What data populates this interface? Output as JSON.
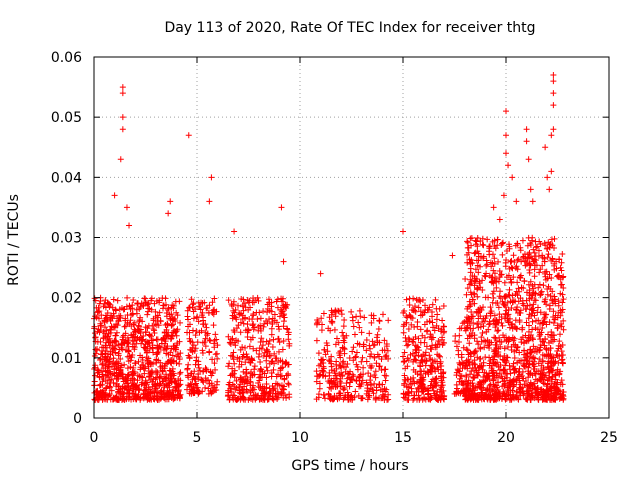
{
  "chart_data": {
    "type": "scatter",
    "title": "Day 113 of 2020, Rate Of TEC Index for receiver thtg",
    "xlabel": "GPS time / hours",
    "ylabel": "ROTI / TECUs",
    "xlim": [
      0,
      25
    ],
    "ylim": [
      0,
      0.06
    ],
    "grid": true,
    "marker": "+",
    "color": "#ff0000",
    "x_ticks": [
      0,
      5,
      10,
      15,
      20,
      25
    ],
    "x_tick_labels": [
      "0",
      "5",
      "10",
      "15",
      "20",
      "25"
    ],
    "y_ticks": [
      0,
      0.01,
      0.02,
      0.03,
      0.04,
      0.05,
      0.06
    ],
    "y_tick_labels": [
      "0",
      "0.01",
      "0.02",
      "0.03",
      "0.04",
      "0.05",
      "0.06"
    ],
    "series": [
      {
        "name": "ROTI",
        "clusters": [
          {
            "x_start": 0.0,
            "x_end": 4.2,
            "y_min": 0.003,
            "y_max": 0.02,
            "density": 900
          },
          {
            "x_start": 4.5,
            "x_end": 6.0,
            "y_min": 0.004,
            "y_max": 0.02,
            "density": 180
          },
          {
            "x_start": 6.5,
            "x_end": 9.5,
            "y_min": 0.003,
            "y_max": 0.02,
            "density": 420
          },
          {
            "x_start": 10.8,
            "x_end": 14.3,
            "y_min": 0.003,
            "y_max": 0.018,
            "density": 330
          },
          {
            "x_start": 15.0,
            "x_end": 17.0,
            "y_min": 0.003,
            "y_max": 0.02,
            "density": 320
          },
          {
            "x_start": 17.5,
            "x_end": 18.0,
            "y_min": 0.004,
            "y_max": 0.016,
            "density": 50
          },
          {
            "x_start": 18.0,
            "x_end": 22.8,
            "y_min": 0.003,
            "y_max": 0.03,
            "density": 1300
          }
        ],
        "highlights": [
          {
            "x": 1.4,
            "y": 0.055
          },
          {
            "x": 1.4,
            "y": 0.054
          },
          {
            "x": 1.4,
            "y": 0.05
          },
          {
            "x": 1.4,
            "y": 0.048
          },
          {
            "x": 1.3,
            "y": 0.043
          },
          {
            "x": 4.6,
            "y": 0.047
          },
          {
            "x": 5.7,
            "y": 0.04
          },
          {
            "x": 5.6,
            "y": 0.036
          },
          {
            "x": 9.1,
            "y": 0.035
          },
          {
            "x": 3.7,
            "y": 0.036
          },
          {
            "x": 3.6,
            "y": 0.034
          },
          {
            "x": 1.0,
            "y": 0.037
          },
          {
            "x": 1.6,
            "y": 0.035
          },
          {
            "x": 1.7,
            "y": 0.032
          },
          {
            "x": 6.8,
            "y": 0.031
          },
          {
            "x": 15.0,
            "y": 0.031
          },
          {
            "x": 9.2,
            "y": 0.026
          },
          {
            "x": 11.0,
            "y": 0.024
          },
          {
            "x": 17.4,
            "y": 0.027
          },
          {
            "x": 20.0,
            "y": 0.051
          },
          {
            "x": 20.0,
            "y": 0.047
          },
          {
            "x": 20.0,
            "y": 0.044
          },
          {
            "x": 20.1,
            "y": 0.042
          },
          {
            "x": 20.3,
            "y": 0.04
          },
          {
            "x": 20.5,
            "y": 0.036
          },
          {
            "x": 21.0,
            "y": 0.048
          },
          {
            "x": 21.0,
            "y": 0.046
          },
          {
            "x": 21.1,
            "y": 0.043
          },
          {
            "x": 21.2,
            "y": 0.038
          },
          {
            "x": 21.3,
            "y": 0.036
          },
          {
            "x": 21.9,
            "y": 0.045
          },
          {
            "x": 22.0,
            "y": 0.04
          },
          {
            "x": 22.1,
            "y": 0.038
          },
          {
            "x": 22.3,
            "y": 0.057
          },
          {
            "x": 22.3,
            "y": 0.056
          },
          {
            "x": 22.3,
            "y": 0.054
          },
          {
            "x": 22.3,
            "y": 0.052
          },
          {
            "x": 22.3,
            "y": 0.048
          },
          {
            "x": 22.2,
            "y": 0.047
          },
          {
            "x": 22.2,
            "y": 0.041
          },
          {
            "x": 19.4,
            "y": 0.035
          },
          {
            "x": 19.7,
            "y": 0.033
          },
          {
            "x": 19.9,
            "y": 0.037
          }
        ]
      }
    ]
  }
}
